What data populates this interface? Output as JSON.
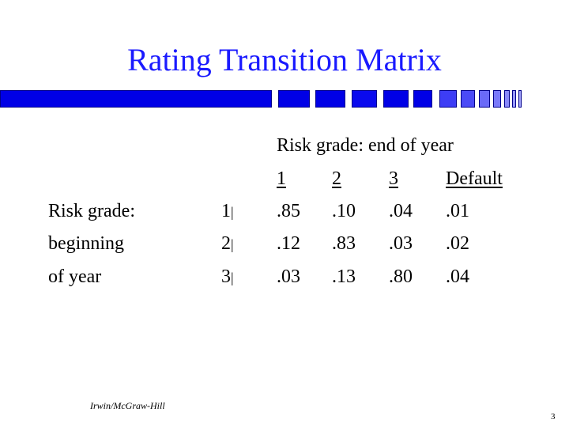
{
  "slide": {
    "title": "Rating Transition Matrix",
    "accent_color": "#1a1aff",
    "footer": "Irwin/McGraw-Hill",
    "page_number": "3"
  },
  "matrix": {
    "super_header": "Risk grade: end of year",
    "column_headers": [
      "1",
      "2",
      "3",
      "Default"
    ],
    "row_label_lines": [
      "Risk grade:",
      "beginning",
      "of year"
    ],
    "rows": [
      {
        "grade": "1",
        "values": [
          ".85",
          ".10",
          ".04",
          ".01"
        ]
      },
      {
        "grade": "2",
        "values": [
          ".12",
          ".83",
          ".03",
          ".02"
        ]
      },
      {
        "grade": "3",
        "values": [
          ".03",
          ".13",
          ".80",
          ".04"
        ]
      }
    ]
  }
}
